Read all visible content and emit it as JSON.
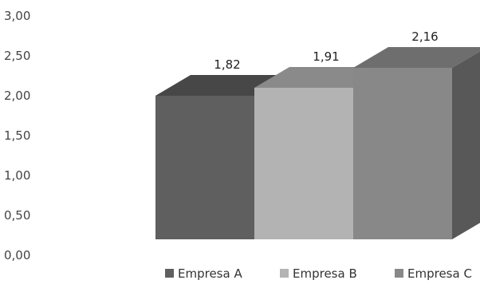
{
  "chart_data": {
    "type": "bar",
    "title": "",
    "xlabel": "",
    "ylabel": "",
    "ylim": [
      0,
      3
    ],
    "y_ticks": [
      "0,00",
      "0,50",
      "1,00",
      "1,50",
      "2,00",
      "2,50",
      "3,00"
    ],
    "y_tick_values": [
      0,
      0.5,
      1,
      1.5,
      2,
      2.5,
      3
    ],
    "grid": false,
    "legend_position": "bottom",
    "series": [
      {
        "name": "Empresa A",
        "value": 1.82,
        "label": "1,82",
        "color": "#5f5f5f",
        "top_color": "#474747",
        "side_color": "#4a4a4a"
      },
      {
        "name": "Empresa B",
        "value": 1.91,
        "label": "1,91",
        "color": "#b3b3b3",
        "top_color": "#8a8a8a",
        "side_color": "#9a9a9a"
      },
      {
        "name": "Empresa C",
        "value": 2.16,
        "label": "2,16",
        "color": "#888888",
        "top_color": "#6e6e6e",
        "side_color": "#585858"
      }
    ]
  }
}
